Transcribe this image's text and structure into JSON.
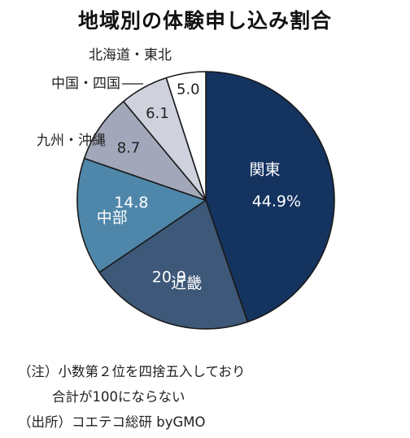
{
  "chart_data": {
    "type": "pie",
    "title": "地域別の体験申し込み割合",
    "start_angle": "12 o'clock, clockwise",
    "slices": [
      {
        "label": "関東",
        "value": 44.9,
        "value_text": "44.9%",
        "color": "#14335f",
        "label_inside": true
      },
      {
        "label": "近畿",
        "value": 20.9,
        "value_text": "20.9",
        "color": "#3d5878",
        "label_inside": true
      },
      {
        "label": "中部",
        "value": 14.8,
        "value_text": "14.8",
        "color": "#4f87aa",
        "label_inside": true
      },
      {
        "label": "九州・沖縄",
        "value": 8.7,
        "value_text": "8.7",
        "color": "#a2a8ba",
        "label_inside": false
      },
      {
        "label": "中国・四国",
        "value": 6.1,
        "value_text": "6.1",
        "color": "#cfd1dd",
        "label_inside": false
      },
      {
        "label": "北海道・東北",
        "value": 5.0,
        "value_text": "5.0",
        "color": "#ffffff",
        "label_inside": false
      }
    ]
  },
  "notes": {
    "line1": "（注）小数第２位を四捨五入しており",
    "line2": "合計が100にならない",
    "source": "（出所）コエテコ総研 byGMO"
  }
}
